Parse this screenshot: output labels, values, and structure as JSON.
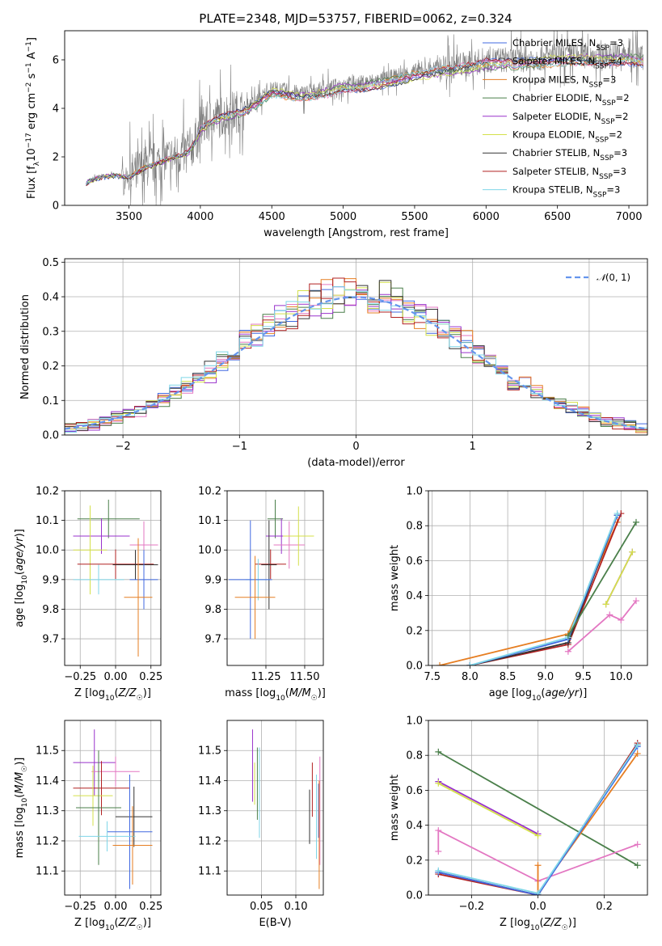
{
  "figure_title": "PLATE=2348, MJD=53757, FIBERID=0062, z=0.324",
  "colors": {
    "grid": "#b0b0b0",
    "spectrum": "#808080",
    "normal": "#6495ed"
  },
  "models": [
    {
      "name": "Chabrier MILES, N_SSP=3",
      "base": "Chabrier MILES, N",
      "sub": "SSP",
      "tail": "=3",
      "color": "#4169e1"
    },
    {
      "name": "Salpeter MILES, N_SSP=4",
      "base": "Salpeter MILES, N",
      "sub": "SSP",
      "tail": "=4",
      "color": "#e377c2"
    },
    {
      "name": "Kroupa MILES, N_SSP=3",
      "base": "Kroupa MILES, N",
      "sub": "SSP",
      "tail": "=3",
      "color": "#e67e22"
    },
    {
      "name": "Chabrier ELODIE, N_SSP=2",
      "base": "Chabrier ELODIE, N",
      "sub": "SSP",
      "tail": "=2",
      "color": "#4a7f4a"
    },
    {
      "name": "Salpeter ELODIE, N_SSP=2",
      "base": "Salpeter ELODIE, N",
      "sub": "SSP",
      "tail": "=2",
      "color": "#9932cc"
    },
    {
      "name": "Kroupa ELODIE, N_SSP=2",
      "base": "Kroupa ELODIE, N",
      "sub": "SSP",
      "tail": "=2",
      "color": "#d4e04a"
    },
    {
      "name": "Chabrier STELIB, N_SSP=3",
      "base": "Chabrier STELIB, N",
      "sub": "SSP",
      "tail": "=3",
      "color": "#333333"
    },
    {
      "name": "Salpeter STELIB, N_SSP=3",
      "base": "Salpeter STELIB, N",
      "sub": "SSP",
      "tail": "=3",
      "color": "#b22222"
    },
    {
      "name": "Kroupa STELIB, N_SSP=3",
      "base": "Kroupa STELIB, N",
      "sub": "SSP",
      "tail": "=3",
      "color": "#7fd6e8"
    }
  ],
  "chart_data": [
    {
      "id": "spectrum",
      "type": "line",
      "title": "PLATE=2348, MJD=53757, FIBERID=0062, z=0.324",
      "xlabel": "wavelength [Angstrom, rest frame]",
      "ylabel": "Flux [f_λ 10^-17 erg cm^-2 s^-1 A^-1]",
      "xlim": [
        3050,
        7130
      ],
      "ylim": [
        0,
        7.2
      ],
      "xticks": [
        3500,
        4000,
        4500,
        5000,
        5500,
        6000,
        6500,
        7000
      ],
      "yticks": [
        0,
        2,
        4,
        6
      ],
      "continuum": {
        "x": [
          3200,
          3250,
          3300,
          3400,
          3500,
          3600,
          3700,
          3800,
          3900,
          3950,
          4000,
          4100,
          4200,
          4300,
          4400,
          4500,
          4700,
          4900,
          5000,
          5100,
          5200,
          5300,
          5500,
          5700,
          5900,
          6000,
          6200,
          6400,
          6600,
          6800,
          7000,
          7100
        ],
        "y": [
          0.95,
          1.1,
          1.2,
          1.25,
          1.2,
          1.55,
          1.8,
          2.0,
          2.2,
          2.5,
          3.2,
          3.6,
          3.8,
          3.95,
          4.3,
          4.8,
          4.6,
          4.8,
          5.0,
          5.0,
          5.1,
          5.2,
          5.5,
          5.7,
          5.85,
          6.0,
          6.0,
          6.1,
          6.2,
          6.15,
          6.2,
          6.1
        ]
      }
    },
    {
      "id": "residuals",
      "type": "line",
      "xlabel": "(data-model)/error",
      "ylabel": "Normed distribution",
      "xlim": [
        -2.5,
        2.5
      ],
      "ylim": [
        0,
        0.51
      ],
      "xticks": [
        -2,
        -1,
        0,
        1,
        2
      ],
      "yticks": [
        0.0,
        0.1,
        0.2,
        0.3,
        0.4,
        0.5
      ],
      "legend": "N(0,1)"
    },
    {
      "id": "age-vs-z",
      "type": "scatter",
      "xlabel": "Z [log10(Z/Z☉)]",
      "ylabel": "age [log10(age/yr)]",
      "xlim": [
        -0.36,
        0.32
      ],
      "ylim": [
        9.61,
        10.2
      ],
      "xticks": [
        -0.25,
        0.0,
        0.25
      ],
      "yticks": [
        9.7,
        9.8,
        9.9,
        10.0,
        10.1,
        10.2
      ],
      "points": [
        {
          "x": -0.05,
          "y": 10.105,
          "xerr": 0.22,
          "yerr": 0.065,
          "model": 3
        },
        {
          "x": -0.1,
          "y": 10.047,
          "xerr": 0.2,
          "yerr": 0.06,
          "model": 4
        },
        {
          "x": 0.2,
          "y": 10.017,
          "xerr": 0.1,
          "yerr": 0.08,
          "model": 1
        },
        {
          "x": -0.18,
          "y": 10.0,
          "xerr": 0.12,
          "yerr": 0.15,
          "model": 5
        },
        {
          "x": 0.0,
          "y": 9.952,
          "xerr": 0.27,
          "yerr": 0.05,
          "model": 7
        },
        {
          "x": 0.14,
          "y": 9.95,
          "xerr": 0.16,
          "yerr": 0.05,
          "model": 6
        },
        {
          "x": -0.12,
          "y": 9.9,
          "xerr": 0.18,
          "yerr": 0.05,
          "model": 8
        },
        {
          "x": 0.2,
          "y": 9.9,
          "xerr": 0.1,
          "yerr": 0.1,
          "model": 0
        },
        {
          "x": 0.16,
          "y": 9.84,
          "xerr": 0.1,
          "yerr": 0.2,
          "model": 2
        }
      ]
    },
    {
      "id": "age-vs-mass",
      "type": "scatter",
      "xlabel": "mass [log10(M/M☉)]",
      "ylabel": "",
      "xlim": [
        11.0,
        11.62
      ],
      "ylim": [
        9.61,
        10.2
      ],
      "xticks": [
        11.25,
        11.5
      ],
      "yticks": [
        9.7,
        9.8,
        9.9,
        10.0,
        10.1,
        10.2
      ],
      "points": [
        {
          "x": 11.31,
          "y": 10.105,
          "xerr": 0.05,
          "yerr": 0.065,
          "model": 3
        },
        {
          "x": 11.35,
          "y": 10.047,
          "xerr": 0.1,
          "yerr": 0.06,
          "model": 4
        },
        {
          "x": 11.4,
          "y": 10.017,
          "xerr": 0.1,
          "yerr": 0.08,
          "model": 1
        },
        {
          "x": 11.46,
          "y": 10.047,
          "xerr": 0.1,
          "yerr": 0.1,
          "model": 5
        },
        {
          "x": 11.28,
          "y": 9.952,
          "xerr": 0.1,
          "yerr": 0.05,
          "model": 7
        },
        {
          "x": 11.27,
          "y": 9.95,
          "xerr": 0.05,
          "yerr": 0.15,
          "model": 6
        },
        {
          "x": 11.2,
          "y": 9.9,
          "xerr": 0.08,
          "yerr": 0.07,
          "model": 8
        },
        {
          "x": 11.15,
          "y": 9.9,
          "xerr": 0.14,
          "yerr": 0.2,
          "model": 0
        },
        {
          "x": 11.18,
          "y": 9.84,
          "xerr": 0.13,
          "yerr": 0.14,
          "model": 2
        }
      ]
    },
    {
      "id": "mass-weight-vs-age",
      "type": "line",
      "xlabel": "age [log10(age/yr)]",
      "ylabel": "mass weight",
      "xlim": [
        7.45,
        10.35
      ],
      "ylim": [
        0,
        1.0
      ],
      "xticks": [
        7.5,
        8.0,
        8.5,
        9.0,
        9.5,
        10.0
      ],
      "yticks": [
        0.0,
        0.2,
        0.4,
        0.6,
        0.8,
        1.0
      ],
      "series": [
        {
          "model": 2,
          "x": [
            7.6,
            9.3,
            9.95
          ],
          "y": [
            0.0,
            0.18,
            0.82
          ]
        },
        {
          "model": 7,
          "x": [
            8.0,
            9.3,
            10.0
          ],
          "y": [
            0.0,
            0.12,
            0.87
          ]
        },
        {
          "model": 6,
          "x": [
            8.0,
            9.3,
            9.95
          ],
          "y": [
            0.0,
            0.13,
            0.86
          ]
        },
        {
          "model": 0,
          "x": [
            8.0,
            9.3,
            9.95
          ],
          "y": [
            0.0,
            0.15,
            0.86
          ]
        },
        {
          "model": 8,
          "x": [
            8.0,
            9.3,
            9.95
          ],
          "y": [
            0.0,
            0.16,
            0.87
          ]
        },
        {
          "model": 3,
          "x": [
            9.3,
            10.2
          ],
          "y": [
            0.17,
            0.82
          ]
        },
        {
          "model": 4,
          "x": [
            9.8,
            10.15
          ],
          "y": [
            0.35,
            0.65
          ]
        },
        {
          "model": 5,
          "x": [
            9.8,
            10.15
          ],
          "y": [
            0.35,
            0.65
          ]
        },
        {
          "model": 1,
          "x": [
            9.3,
            9.85,
            10.0,
            10.2
          ],
          "y": [
            0.08,
            0.29,
            0.26,
            0.37
          ]
        }
      ]
    },
    {
      "id": "mass-vs-z",
      "type": "scatter",
      "xlabel": "Z [log10(Z/Z☉)]",
      "ylabel": "mass [log10(M/M☉)]",
      "xlim": [
        -0.36,
        0.32
      ],
      "ylim": [
        11.02,
        11.6
      ],
      "xticks": [
        -0.25,
        0.0,
        0.25
      ],
      "yticks": [
        11.1,
        11.2,
        11.3,
        11.4,
        11.5
      ],
      "points": [
        {
          "x": -0.15,
          "y": 11.46,
          "xerr": 0.15,
          "yerr": 0.11,
          "model": 4
        },
        {
          "x": 0.0,
          "y": 11.43,
          "xerr": 0.17,
          "yerr": 0.05,
          "model": 1
        },
        {
          "x": -0.1,
          "y": 11.375,
          "xerr": 0.2,
          "yerr": 0.09,
          "model": 7
        },
        {
          "x": -0.16,
          "y": 11.35,
          "xerr": 0.14,
          "yerr": 0.1,
          "model": 5
        },
        {
          "x": -0.12,
          "y": 11.31,
          "xerr": 0.16,
          "yerr": 0.19,
          "model": 3
        },
        {
          "x": 0.13,
          "y": 11.28,
          "xerr": 0.13,
          "yerr": 0.1,
          "model": 6
        },
        {
          "x": 0.1,
          "y": 11.23,
          "xerr": 0.16,
          "yerr": 0.19,
          "model": 0
        },
        {
          "x": -0.06,
          "y": 11.215,
          "xerr": 0.2,
          "yerr": 0.05,
          "model": 8
        },
        {
          "x": 0.12,
          "y": 11.185,
          "xerr": 0.14,
          "yerr": 0.13,
          "model": 2
        }
      ]
    },
    {
      "id": "mass-vs-ebv",
      "type": "scatter",
      "xlabel": "E(B-V)",
      "ylabel": "",
      "xlim": [
        0.0,
        0.14
      ],
      "ylim": [
        11.02,
        11.6
      ],
      "xticks": [
        0.05,
        0.1
      ],
      "yticks": [
        11.1,
        11.2,
        11.3,
        11.4,
        11.5
      ],
      "points": [
        {
          "x": 0.037,
          "y": 11.45,
          "yerr": 0.12,
          "model": 4
        },
        {
          "x": 0.04,
          "y": 11.39,
          "yerr": 0.07,
          "model": 5
        },
        {
          "x": 0.044,
          "y": 11.39,
          "yerr": 0.12,
          "model": 3
        },
        {
          "x": 0.047,
          "y": 11.36,
          "yerr": 0.15,
          "model": 8
        },
        {
          "x": 0.12,
          "y": 11.28,
          "yerr": 0.09,
          "model": 6
        },
        {
          "x": 0.124,
          "y": 11.37,
          "yerr": 0.09,
          "model": 7
        },
        {
          "x": 0.13,
          "y": 11.28,
          "yerr": 0.14,
          "model": 8
        },
        {
          "x": 0.133,
          "y": 11.3,
          "yerr": 0.09,
          "model": 0
        },
        {
          "x": 0.135,
          "y": 11.3,
          "yerr": 0.18,
          "model": 1
        },
        {
          "x": 0.134,
          "y": 11.22,
          "yerr": 0.18,
          "model": 2
        }
      ]
    },
    {
      "id": "mass-weight-vs-z",
      "type": "line",
      "xlabel": "Z [log10(Z/Z☉)]",
      "ylabel": "mass weight",
      "xlim": [
        -0.33,
        0.33
      ],
      "ylim": [
        0,
        1.0
      ],
      "xticks": [
        -0.2,
        0.0,
        0.2
      ],
      "yticks": [
        0.0,
        0.2,
        0.4,
        0.6,
        0.8,
        1.0
      ],
      "series": [
        {
          "model": 3,
          "x": [
            -0.3,
            0.3
          ],
          "y": [
            0.82,
            0.17
          ]
        },
        {
          "model": 4,
          "x": [
            -0.3,
            0.0
          ],
          "y": [
            0.65,
            0.35
          ]
        },
        {
          "model": 5,
          "x": [
            -0.3,
            0.0
          ],
          "y": [
            0.64,
            0.34
          ]
        },
        {
          "model": 1,
          "x": [
            -0.3,
            -0.3,
            0.0,
            0.3
          ],
          "y": [
            0.25,
            0.37,
            0.08,
            0.29
          ]
        },
        {
          "model": 2,
          "x": [
            0.0,
            0.0,
            0.3
          ],
          "y": [
            0.17,
            0.01,
            0.81
          ]
        },
        {
          "model": 6,
          "x": [
            -0.3,
            0.0,
            0.3
          ],
          "y": [
            0.13,
            0.0,
            0.86
          ]
        },
        {
          "model": 7,
          "x": [
            -0.3,
            0.0,
            0.3
          ],
          "y": [
            0.12,
            0.0,
            0.87
          ]
        },
        {
          "model": 0,
          "x": [
            -0.3,
            0.0,
            0.3
          ],
          "y": [
            0.13,
            0.0,
            0.85
          ]
        },
        {
          "model": 8,
          "x": [
            -0.3,
            0.0,
            0.3
          ],
          "y": [
            0.14,
            0.01,
            0.86
          ]
        }
      ]
    }
  ]
}
